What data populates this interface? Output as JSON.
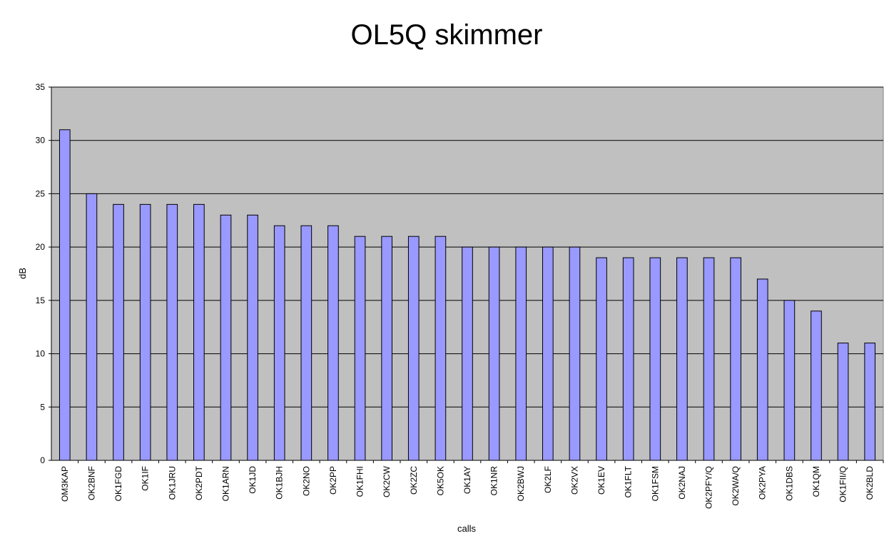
{
  "chart_data": {
    "type": "bar",
    "title": "OL5Q skimmer",
    "xlabel": "calls",
    "ylabel": "dB",
    "ylim": [
      0,
      35
    ],
    "yticks": [
      0,
      5,
      10,
      15,
      20,
      25,
      30,
      35
    ],
    "grid": true,
    "legend": "none",
    "categories": [
      "OM3KAP",
      "OK2BNF",
      "OK1FGD",
      "OK1IF",
      "OK1JRU",
      "OK2PDT",
      "OK1ARN",
      "OK1JD",
      "OK1BJH",
      "OK2NO",
      "OK2PP",
      "OK1FHI",
      "OK2CW",
      "OK2ZC",
      "OK5OK",
      "OK1AY",
      "OK1NR",
      "OK2BWJ",
      "OK2LF",
      "OK2VX",
      "OK1EV",
      "OK1FLT",
      "OK1FSM",
      "OK2NAJ",
      "OK2PFY/Q",
      "OK2WA/Q",
      "OK2PYA",
      "OK1DBS",
      "OK1QM",
      "OK1FII/Q",
      "OK2BLD"
    ],
    "values": [
      31,
      25,
      24,
      24,
      24,
      24,
      23,
      23,
      22,
      22,
      22,
      21,
      21,
      21,
      21,
      20,
      20,
      20,
      20,
      20,
      19,
      19,
      19,
      19,
      19,
      19,
      17,
      15,
      14,
      11,
      11
    ],
    "colors": {
      "plot_background": "#c0c0c0",
      "bar_fill": "#9999ff",
      "bar_stroke": "#000000",
      "grid": "#000000"
    }
  }
}
